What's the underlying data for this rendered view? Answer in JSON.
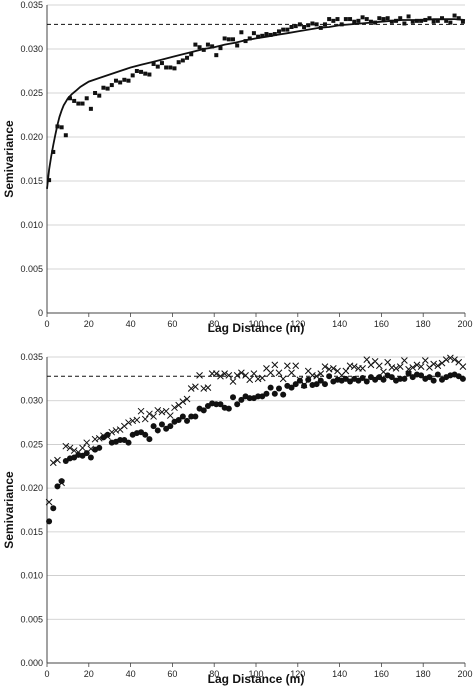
{
  "colors": {
    "grid": "#c8c8c8",
    "axis": "#444444",
    "ink": "#111111"
  },
  "chart_data": [
    {
      "type": "scatter",
      "xlabel": "Lag Distance (m)",
      "ylabel": "Semivariance",
      "xlim": [
        0,
        200
      ],
      "ylim": [
        0,
        0.035
      ],
      "x_ticks": [
        "0",
        "20",
        "40",
        "60",
        "80",
        "100",
        "120",
        "140",
        "160",
        "180",
        "200"
      ],
      "y_ticks": [
        "0",
        "0.005",
        "0.010",
        "0.015",
        "0.020",
        "0.025",
        "0.030",
        "0.035"
      ],
      "grid": "horizontal",
      "reference_line": 0.0328,
      "series": [
        {
          "marker": "square",
          "x": [
            1,
            3,
            5,
            7,
            9,
            11,
            13,
            15,
            17,
            19,
            21,
            23,
            25,
            27,
            29,
            31,
            33,
            35,
            37,
            39,
            41,
            43,
            45,
            47,
            49,
            51,
            53,
            55,
            57,
            59,
            61,
            63,
            65,
            67,
            69,
            71,
            73,
            75,
            77,
            79,
            81,
            83,
            85,
            87,
            89,
            91,
            93,
            95,
            97,
            99,
            101,
            103,
            105,
            107,
            109,
            111,
            113,
            115,
            117,
            119,
            121,
            123,
            125,
            127,
            129,
            131,
            133,
            135,
            137,
            139,
            141,
            143,
            145,
            147,
            149,
            151,
            153,
            155,
            157,
            159,
            161,
            163,
            165,
            167,
            169,
            171,
            173,
            175,
            177,
            179,
            181,
            183,
            185,
            187,
            189,
            191,
            193,
            195,
            197,
            199
          ],
          "y": [
            0.0151,
            0.0183,
            0.0212,
            0.0211,
            0.0202,
            0.0244,
            0.0241,
            0.0238,
            0.0238,
            0.0244,
            0.0232,
            0.025,
            0.0247,
            0.0256,
            0.0255,
            0.0259,
            0.0264,
            0.0262,
            0.0265,
            0.0264,
            0.027,
            0.0275,
            0.0274,
            0.0272,
            0.0271,
            0.0283,
            0.028,
            0.0284,
            0.0279,
            0.0279,
            0.0278,
            0.0285,
            0.0287,
            0.029,
            0.0294,
            0.0305,
            0.0302,
            0.0299,
            0.0305,
            0.0303,
            0.0293,
            0.0301,
            0.0312,
            0.0311,
            0.0311,
            0.0304,
            0.0319,
            0.0309,
            0.0312,
            0.0318,
            0.0314,
            0.0315,
            0.0317,
            0.0316,
            0.0317,
            0.032,
            0.0322,
            0.0322,
            0.0325,
            0.0326,
            0.0328,
            0.0325,
            0.0327,
            0.0329,
            0.0328,
            0.0324,
            0.0328,
            0.0334,
            0.0332,
            0.0334,
            0.0328,
            0.0334,
            0.0334,
            0.0331,
            0.0332,
            0.0336,
            0.0334,
            0.0331,
            0.033,
            0.0335,
            0.0334,
            0.0335,
            0.0331,
            0.0332,
            0.0335,
            0.0329,
            0.0337,
            0.0331,
            0.0332,
            0.0332,
            0.0333,
            0.0335,
            0.0331,
            0.0332,
            0.0335,
            0.0332,
            0.033,
            0.0338,
            0.0335,
            0.0331
          ]
        }
      ],
      "fitted_curve": {
        "x": [
          0,
          1,
          2,
          3,
          4,
          5,
          6,
          7,
          8,
          9,
          10,
          12,
          14,
          16,
          18,
          20,
          25,
          30,
          35,
          40,
          45,
          50,
          55,
          60,
          65,
          70,
          75,
          80,
          85,
          90,
          95,
          100,
          105,
          110,
          115,
          120,
          125,
          130,
          135,
          140,
          145,
          150,
          155,
          160,
          165,
          170,
          175,
          180,
          185,
          190,
          195,
          200
        ],
        "y": [
          0.0141,
          0.0163,
          0.0178,
          0.0191,
          0.0203,
          0.0214,
          0.0223,
          0.023,
          0.0236,
          0.024,
          0.0244,
          0.0249,
          0.0253,
          0.0257,
          0.026,
          0.0263,
          0.0267,
          0.0271,
          0.0275,
          0.0279,
          0.0282,
          0.0285,
          0.0288,
          0.0291,
          0.0294,
          0.0297,
          0.03,
          0.0302,
          0.0305,
          0.0307,
          0.031,
          0.0312,
          0.0314,
          0.0316,
          0.0318,
          0.032,
          0.0322,
          0.0324,
          0.0325,
          0.0327,
          0.0328,
          0.0329,
          0.033,
          0.0331,
          0.0332,
          0.0333,
          0.0333,
          0.0333,
          0.0334,
          0.0334,
          0.0334,
          0.0333
        ]
      }
    },
    {
      "type": "scatter",
      "xlabel": "Lag Distance (m)",
      "ylabel": "Semivariance",
      "xlim": [
        0,
        200
      ],
      "ylim": [
        0,
        0.035
      ],
      "x_ticks": [
        "0",
        "20",
        "40",
        "60",
        "80",
        "100",
        "120",
        "140",
        "160",
        "180",
        "200"
      ],
      "y_ticks": [
        "0.000",
        "0.005",
        "0.010",
        "0.015",
        "0.020",
        "0.025",
        "0.030",
        "0.035"
      ],
      "grid": "horizontal",
      "reference_line": 0.0328,
      "series": [
        {
          "marker": "cross",
          "x": [
            1,
            3,
            5,
            7,
            9,
            11,
            13,
            15,
            17,
            19,
            21,
            23,
            25,
            27,
            29,
            31,
            33,
            35,
            37,
            39,
            41,
            43,
            45,
            47,
            49,
            51,
            53,
            55,
            57,
            59,
            61,
            63,
            65,
            67,
            69,
            71,
            73,
            75,
            77,
            79,
            81,
            83,
            85,
            87,
            89,
            91,
            93,
            95,
            97,
            99,
            101,
            103,
            105,
            107,
            109,
            111,
            113,
            115,
            117,
            119,
            121,
            123,
            125,
            127,
            129,
            131,
            133,
            135,
            137,
            139,
            141,
            143,
            145,
            147,
            149,
            151,
            153,
            155,
            157,
            159,
            161,
            163,
            165,
            167,
            169,
            171,
            173,
            175,
            177,
            179,
            181,
            183,
            185,
            187,
            189,
            191,
            193,
            195,
            197,
            199
          ],
          "y": [
            0.0184,
            0.0229,
            0.0232,
            0.0206,
            0.0248,
            0.0246,
            0.0243,
            0.0241,
            0.0246,
            0.0252,
            0.0245,
            0.0256,
            0.0257,
            0.026,
            0.0259,
            0.0264,
            0.0266,
            0.0267,
            0.0271,
            0.0275,
            0.0277,
            0.0278,
            0.0288,
            0.0279,
            0.0285,
            0.0282,
            0.0289,
            0.0287,
            0.0288,
            0.0283,
            0.0292,
            0.0295,
            0.0299,
            0.0302,
            0.0314,
            0.0316,
            0.0329,
            0.0314,
            0.0315,
            0.0331,
            0.0331,
            0.0328,
            0.0331,
            0.0329,
            0.0322,
            0.0329,
            0.0332,
            0.0329,
            0.0324,
            0.0331,
            0.0325,
            0.0326,
            0.0337,
            0.0332,
            0.0341,
            0.0332,
            0.0325,
            0.034,
            0.0332,
            0.034,
            0.0324,
            0.0318,
            0.0334,
            0.0329,
            0.0328,
            0.0331,
            0.0339,
            0.0336,
            0.0337,
            0.0334,
            0.0329,
            0.0334,
            0.034,
            0.0339,
            0.0337,
            0.0337,
            0.0347,
            0.0341,
            0.0345,
            0.034,
            0.0333,
            0.0344,
            0.0338,
            0.0337,
            0.0339,
            0.0346,
            0.0336,
            0.0338,
            0.0341,
            0.0339,
            0.0346,
            0.0338,
            0.0342,
            0.034,
            0.0343,
            0.0347,
            0.0349,
            0.0347,
            0.0344,
            0.0339
          ]
        },
        {
          "marker": "circle",
          "x": [
            1,
            3,
            5,
            7,
            9,
            11,
            13,
            15,
            17,
            19,
            21,
            23,
            25,
            27,
            29,
            31,
            33,
            35,
            37,
            39,
            41,
            43,
            45,
            47,
            49,
            51,
            53,
            55,
            57,
            59,
            61,
            63,
            65,
            67,
            69,
            71,
            73,
            75,
            77,
            79,
            81,
            83,
            85,
            87,
            89,
            91,
            93,
            95,
            97,
            99,
            101,
            103,
            105,
            107,
            109,
            111,
            113,
            115,
            117,
            119,
            121,
            123,
            125,
            127,
            129,
            131,
            133,
            135,
            137,
            139,
            141,
            143,
            145,
            147,
            149,
            151,
            153,
            155,
            157,
            159,
            161,
            163,
            165,
            167,
            169,
            171,
            173,
            175,
            177,
            179,
            181,
            183,
            185,
            187,
            189,
            191,
            193,
            195,
            197,
            199
          ],
          "y": [
            0.0162,
            0.0177,
            0.0202,
            0.0208,
            0.0231,
            0.0234,
            0.0235,
            0.0238,
            0.0237,
            0.024,
            0.0235,
            0.0244,
            0.0246,
            0.0258,
            0.0261,
            0.0252,
            0.0253,
            0.0255,
            0.0255,
            0.0252,
            0.0261,
            0.0263,
            0.0264,
            0.0261,
            0.0256,
            0.0271,
            0.0266,
            0.0273,
            0.0268,
            0.0271,
            0.0276,
            0.0278,
            0.0282,
            0.0277,
            0.0282,
            0.0282,
            0.0291,
            0.0289,
            0.0294,
            0.0297,
            0.0296,
            0.0296,
            0.0292,
            0.0291,
            0.0304,
            0.0296,
            0.0301,
            0.0305,
            0.0303,
            0.0303,
            0.0305,
            0.0305,
            0.0308,
            0.0315,
            0.0308,
            0.0314,
            0.0307,
            0.0317,
            0.0315,
            0.0319,
            0.0323,
            0.0317,
            0.0324,
            0.0318,
            0.0319,
            0.0323,
            0.0319,
            0.0328,
            0.0322,
            0.0324,
            0.0323,
            0.0325,
            0.0322,
            0.0325,
            0.0323,
            0.0326,
            0.0322,
            0.0327,
            0.0324,
            0.0327,
            0.0324,
            0.0329,
            0.0327,
            0.0323,
            0.0325,
            0.0325,
            0.0331,
            0.0327,
            0.033,
            0.0329,
            0.0325,
            0.0327,
            0.0323,
            0.033,
            0.0324,
            0.0327,
            0.0329,
            0.033,
            0.0328,
            0.0325
          ]
        }
      ]
    }
  ]
}
